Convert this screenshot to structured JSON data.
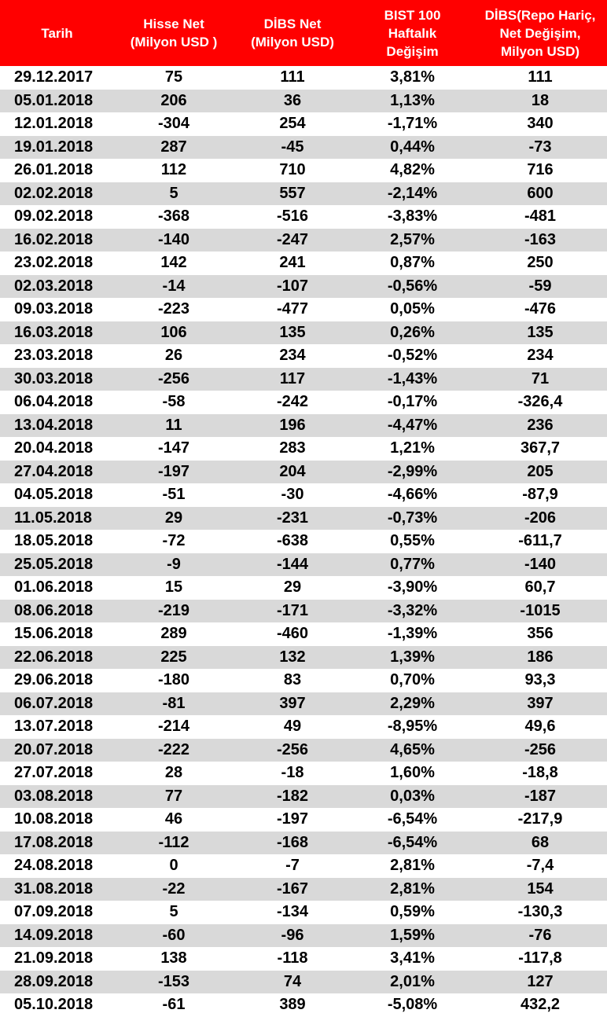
{
  "colors": {
    "header_bg": "#ff0000",
    "header_text": "#ffffff",
    "stripe": "#d9d9d9"
  },
  "table": {
    "headers": [
      {
        "lines": [
          "Tarih"
        ]
      },
      {
        "lines": [
          "Hisse Net",
          "(Milyon USD )"
        ]
      },
      {
        "lines": [
          "DİBS Net",
          "(Milyon USD)"
        ]
      },
      {
        "lines": [
          "BIST 100",
          "Haftalık",
          "Değişim"
        ]
      },
      {
        "lines": [
          "DİBS(Repo Hariç,",
          "Net Değişim,",
          "Milyon USD)"
        ]
      }
    ],
    "rows": [
      [
        "29.12.2017",
        "75",
        "111",
        "3,81%",
        "111"
      ],
      [
        "05.01.2018",
        "206",
        "36",
        "1,13%",
        "18"
      ],
      [
        "12.01.2018",
        "-304",
        "254",
        "-1,71%",
        "340"
      ],
      [
        "19.01.2018",
        "287",
        "-45",
        "0,44%",
        "-73"
      ],
      [
        "26.01.2018",
        "112",
        "710",
        "4,82%",
        "716"
      ],
      [
        "02.02.2018",
        "5",
        "557",
        "-2,14%",
        "600"
      ],
      [
        "09.02.2018",
        "-368",
        "-516",
        "-3,83%",
        "-481"
      ],
      [
        "16.02.2018",
        "-140",
        "-247",
        "2,57%",
        "-163"
      ],
      [
        "23.02.2018",
        "142",
        "241",
        "0,87%",
        "250"
      ],
      [
        "02.03.2018",
        "-14",
        "-107",
        "-0,56%",
        "-59"
      ],
      [
        "09.03.2018",
        "-223",
        "-477",
        "0,05%",
        "-476"
      ],
      [
        "16.03.2018",
        "106",
        "135",
        "0,26%",
        "135"
      ],
      [
        "23.03.2018",
        "26",
        "234",
        "-0,52%",
        "234"
      ],
      [
        "30.03.2018",
        "-256",
        "117",
        "-1,43%",
        "71"
      ],
      [
        "06.04.2018",
        "-58",
        "-242",
        "-0,17%",
        "-326,4"
      ],
      [
        "13.04.2018",
        "11",
        "196",
        "-4,47%",
        "236"
      ],
      [
        "20.04.2018",
        "-147",
        "283",
        "1,21%",
        "367,7"
      ],
      [
        "27.04.2018",
        "-197",
        "204",
        "-2,99%",
        "205"
      ],
      [
        "04.05.2018",
        "-51",
        "-30",
        "-4,66%",
        "-87,9"
      ],
      [
        "11.05.2018",
        "29",
        "-231",
        "-0,73%",
        "-206"
      ],
      [
        "18.05.2018",
        "-72",
        "-638",
        "0,55%",
        "-611,7"
      ],
      [
        "25.05.2018",
        "-9",
        "-144",
        "0,77%",
        "-140"
      ],
      [
        "01.06.2018",
        "15",
        "29",
        "-3,90%",
        "60,7"
      ],
      [
        "08.06.2018",
        "-219",
        "-171",
        "-3,32%",
        "-1015"
      ],
      [
        "15.06.2018",
        "289",
        "-460",
        "-1,39%",
        "356"
      ],
      [
        "22.06.2018",
        "225",
        "132",
        "1,39%",
        "186"
      ],
      [
        "29.06.2018",
        "-180",
        "83",
        "0,70%",
        "93,3"
      ],
      [
        "06.07.2018",
        "-81",
        "397",
        "2,29%",
        "397"
      ],
      [
        "13.07.2018",
        "-214",
        "49",
        "-8,95%",
        "49,6"
      ],
      [
        "20.07.2018",
        "-222",
        "-256",
        "4,65%",
        "-256"
      ],
      [
        "27.07.2018",
        "28",
        "-18",
        "1,60%",
        "-18,8"
      ],
      [
        "03.08.2018",
        "77",
        "-182",
        "0,03%",
        "-187"
      ],
      [
        "10.08.2018",
        "46",
        "-197",
        "-6,54%",
        "-217,9"
      ],
      [
        "17.08.2018",
        "-112",
        "-168",
        "-6,54%",
        "68"
      ],
      [
        "24.08.2018",
        "0",
        "-7",
        "2,81%",
        "-7,4"
      ],
      [
        "31.08.2018",
        "-22",
        "-167",
        "2,81%",
        "154"
      ],
      [
        "07.09.2018",
        "5",
        "-134",
        "0,59%",
        "-130,3"
      ],
      [
        "14.09.2018",
        "-60",
        "-96",
        "1,59%",
        "-76"
      ],
      [
        "21.09.2018",
        "138",
        "-118",
        "3,41%",
        "-117,8"
      ],
      [
        "28.09.2018",
        "-153",
        "74",
        "2,01%",
        "127"
      ],
      [
        "05.10.2018",
        "-61",
        "389",
        "-5,08%",
        "432,2"
      ]
    ]
  }
}
